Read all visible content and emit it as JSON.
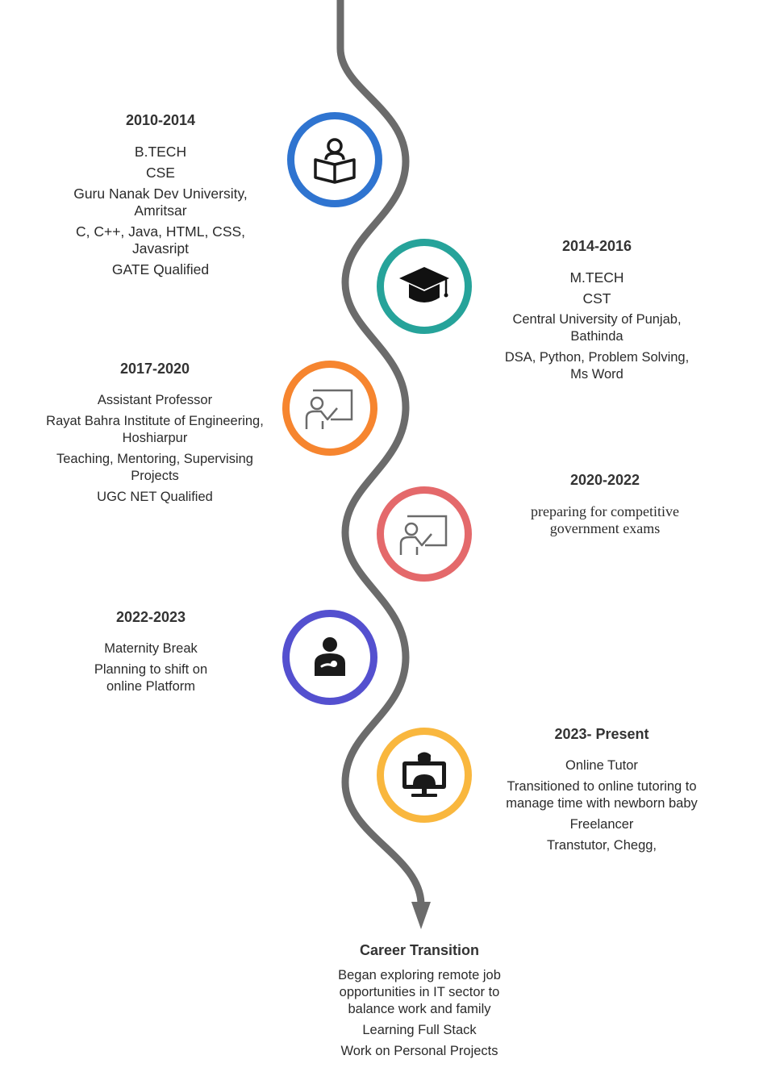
{
  "colors": {
    "path": "#6b6b6b",
    "milestone_1": "#2f74d0",
    "milestone_2": "#26a39a",
    "milestone_3": "#f6852f",
    "milestone_4": "#e4696b",
    "milestone_5": "#5450cf",
    "milestone_6": "#f9b73e"
  },
  "milestones": [
    {
      "period": "2010-2014",
      "icon": "reading-book-icon",
      "lines": [
        "B.TECH",
        "CSE",
        "Guru Nanak Dev University,\nAmritsar",
        "C, C++, Java, HTML, CSS,\nJavasript",
        "GATE Qualified"
      ]
    },
    {
      "period": "2014-2016",
      "icon": "graduation-cap-icon",
      "lines": [
        "M.TECH",
        "CST",
        "Central University of Punjab,\nBathinda",
        "DSA, Python, Problem Solving,\nMs Word"
      ]
    },
    {
      "period": "2017-2020",
      "icon": "teacher-board-icon",
      "lines": [
        "Assistant Professor",
        "Rayat Bahra Institute of Engineering,\nHoshiarpur",
        "Teaching, Mentoring, Supervising\nProjects",
        "UGC NET Qualified"
      ]
    },
    {
      "period": "2020-2022",
      "icon": "teacher-board-icon",
      "lines": [
        "preparing for competitive\ngovernment exams"
      ]
    },
    {
      "period": "2022-2023",
      "icon": "parent-baby-icon",
      "lines": [
        "Maternity Break",
        "Planning to shift on\nonline  Platform"
      ]
    },
    {
      "period": "2023- Present",
      "icon": "online-tutor-monitor-icon",
      "lines": [
        "Online Tutor",
        "Transitioned to online tutoring to\nmanage time with newborn baby",
        "Freelancer",
        "Transtutor, Chegg,"
      ]
    }
  ],
  "final": {
    "title": "Career Transition",
    "lines": [
      "Began exploring remote job\nopportunities in IT sector to\nbalance work and family",
      "Learning Full Stack",
      "Work on Personal Projects"
    ]
  }
}
